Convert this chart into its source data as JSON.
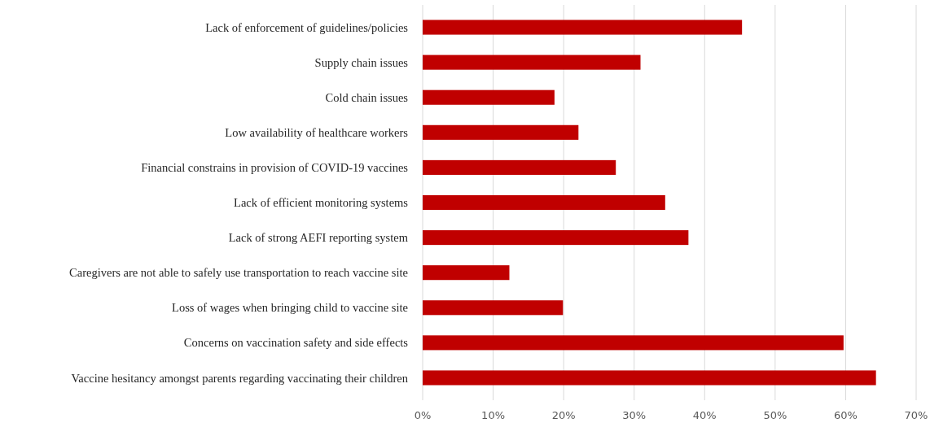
{
  "chart_data": {
    "type": "bar",
    "orientation": "horizontal",
    "categories": [
      "Lack of enforcement of guidelines/policies",
      "Supply chain issues",
      "Cold chain issues",
      "Low availability of healthcare workers",
      "Financial constrains in provision of COVID-19 vaccines",
      "Lack of efficient monitoring systems",
      "Lack of strong AEFI reporting system",
      "Caregivers are not able to safely use transportation to reach vaccine site",
      "Loss of wages when bringing child to vaccine site",
      "Concerns on vaccination safety and side effects",
      "Vaccine hesitancy amongst parents regarding vaccinating their children"
    ],
    "values": [
      45.3,
      30.9,
      18.7,
      22.1,
      27.4,
      34.4,
      37.7,
      12.3,
      19.9,
      59.7,
      64.3
    ],
    "color": "#c00000",
    "xlim": [
      0,
      70
    ],
    "xticks": [
      {
        "value": 0,
        "label": "0%"
      },
      {
        "value": 10,
        "label": "10%"
      },
      {
        "value": 20,
        "label": "20%"
      },
      {
        "value": 30,
        "label": "30%"
      },
      {
        "value": 40,
        "label": "40%"
      },
      {
        "value": 50,
        "label": "50%"
      },
      {
        "value": 60,
        "label": "60%"
      },
      {
        "value": 70,
        "label": "70%"
      }
    ],
    "grid": "x"
  }
}
